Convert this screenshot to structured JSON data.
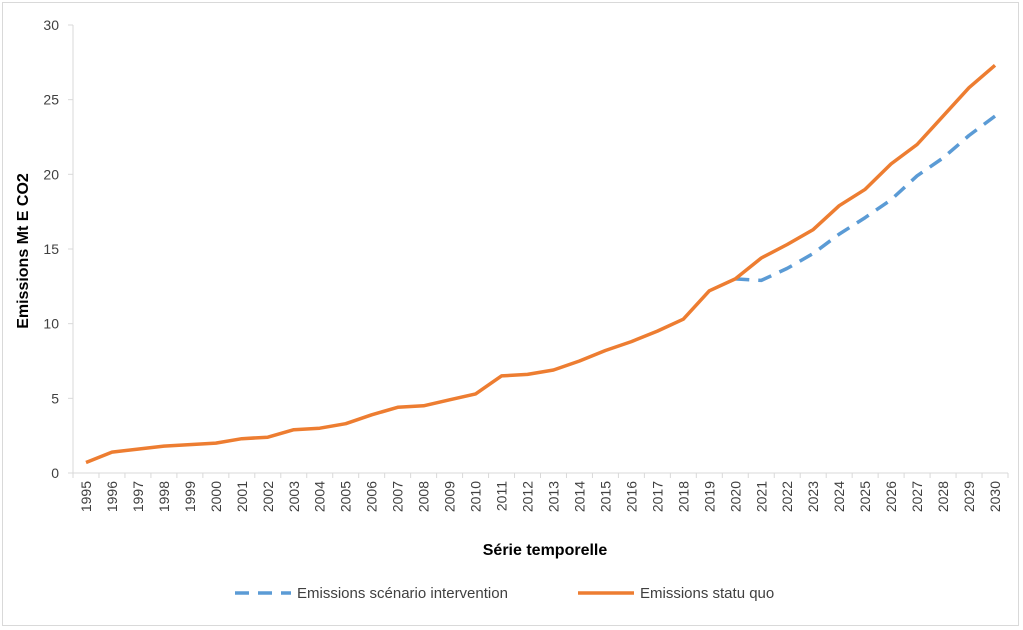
{
  "chart_data": {
    "type": "line",
    "title": "",
    "xlabel": "Série temporelle",
    "ylabel": "Emissions Mt E CO2",
    "ylim": [
      0,
      30
    ],
    "yticks": [
      "0",
      "5",
      "10",
      "15",
      "20",
      "25",
      "30"
    ],
    "grid": false,
    "legend_position": "bottom",
    "categories": [
      "1995",
      "1996",
      "1997",
      "1998",
      "1999",
      "2000",
      "2001",
      "2002",
      "2003",
      "2004",
      "2005",
      "2006",
      "2007",
      "2008",
      "2009",
      "2010",
      "2011",
      "2012",
      "2013",
      "2014",
      "2015",
      "2016",
      "2017",
      "2018",
      "2019",
      "2020",
      "2021",
      "2022",
      "2023",
      "2024",
      "2025",
      "2026",
      "2027",
      "2028",
      "2029",
      "2030"
    ],
    "series": [
      {
        "name": "Emissions scénario intervention",
        "color": "#5b9bd5",
        "dash": "dashed",
        "values": [
          null,
          null,
          null,
          null,
          null,
          null,
          null,
          null,
          null,
          null,
          null,
          null,
          null,
          null,
          null,
          null,
          null,
          null,
          null,
          null,
          null,
          null,
          null,
          null,
          null,
          13.0,
          12.9,
          13.7,
          14.7,
          16.0,
          17.1,
          18.3,
          19.9,
          21.1,
          22.6,
          23.9
        ]
      },
      {
        "name": "Emissions statu quo",
        "color": "#ed7d31",
        "dash": "solid",
        "values": [
          0.7,
          1.4,
          1.6,
          1.8,
          1.9,
          2.0,
          2.3,
          2.4,
          2.9,
          3.0,
          3.3,
          3.9,
          4.4,
          4.5,
          4.9,
          5.3,
          6.5,
          6.6,
          6.9,
          7.5,
          8.2,
          8.8,
          9.5,
          10.3,
          12.2,
          13.0,
          14.4,
          15.3,
          16.3,
          17.9,
          19.0,
          20.7,
          22.0,
          23.9,
          25.8,
          27.3
        ]
      }
    ]
  }
}
